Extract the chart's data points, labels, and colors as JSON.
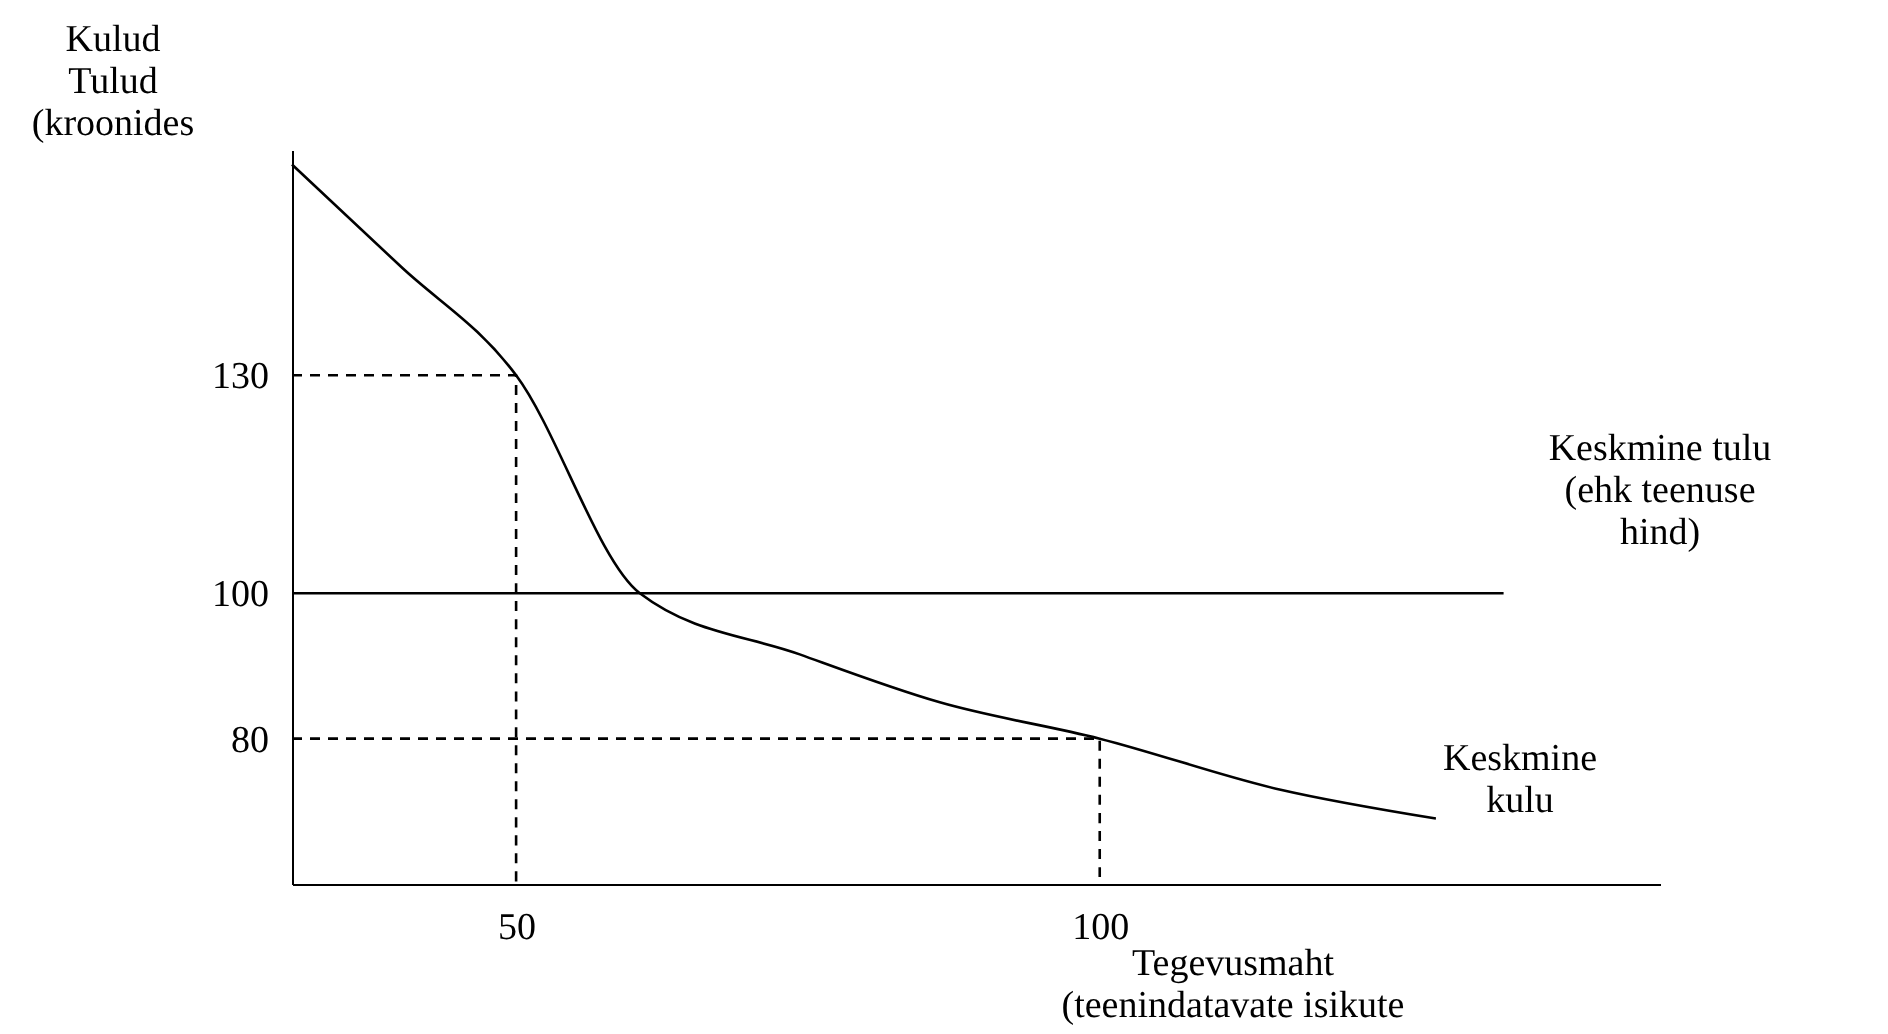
{
  "chart_data": {
    "type": "line",
    "xlabel": "Tegevusmaht\n(teenindatavate isikute",
    "ylabel": "Kulud\nTulud\n(kroonides",
    "xlim": [
      30.8,
      148
    ],
    "ylim": [
      60,
      161
    ],
    "xticks": [
      50,
      100
    ],
    "yticks": [
      80,
      100,
      130
    ],
    "grid": false,
    "marker": "none",
    "series": [
      {
        "color": "#000000",
        "line_style": "solid",
        "x": [
          30.8,
          40.1,
          50,
          60.6,
          74.3,
          86.3,
          100,
          115.4,
          128.8
        ],
        "values": [
          159,
          145,
          130,
          100,
          91.6,
          85,
          80,
          73,
          69
        ]
      },
      {
        "color": "#000000",
        "line_style": "solid",
        "x": [
          30.8,
          134.6
        ],
        "values": [
          100,
          100
        ]
      },
      {
        "color": "#000000",
        "line_style": "dashed",
        "x": [
          30.8,
          50,
          50
        ],
        "values": [
          130,
          130,
          60
        ]
      },
      {
        "color": "#000000",
        "line_style": "dashed",
        "x": [
          30.8,
          100,
          100
        ],
        "values": [
          80,
          80,
          60
        ]
      }
    ],
    "annotations": [
      "Keskmine tulu\n(ehk teenuse\nhind)",
      "Keskmine\nkulu"
    ]
  }
}
